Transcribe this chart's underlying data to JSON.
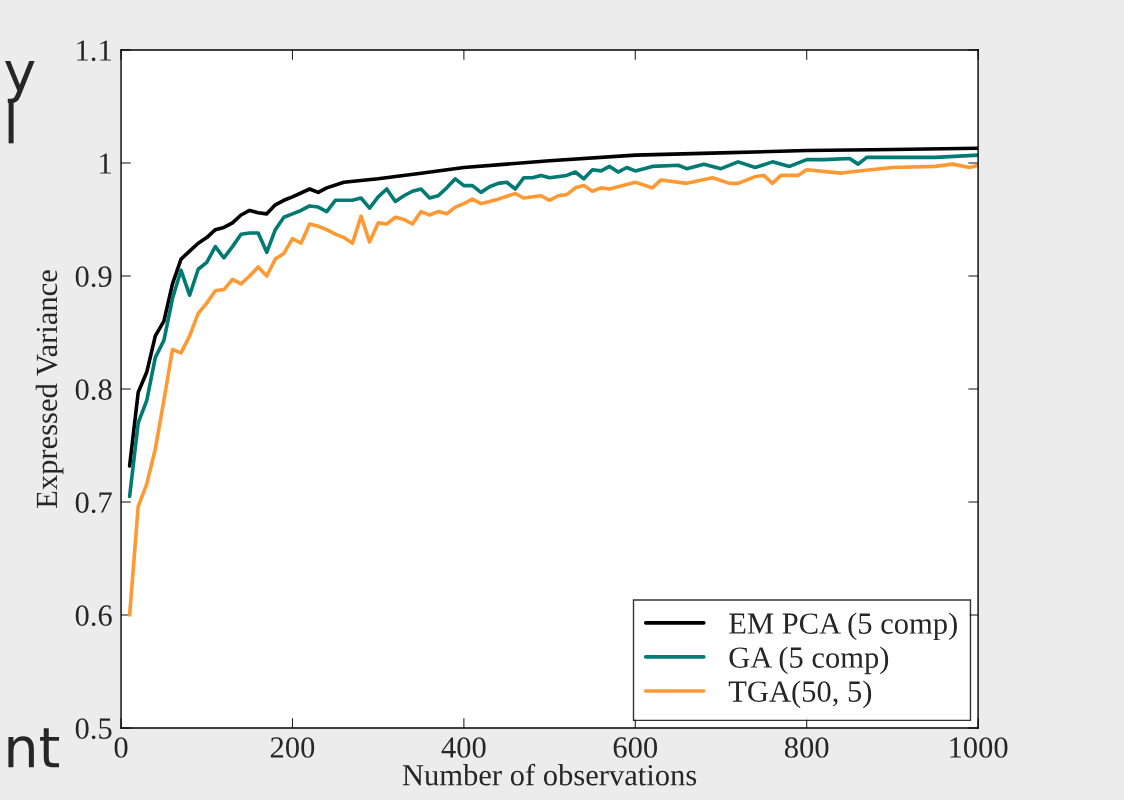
{
  "chart_data": {
    "type": "line",
    "xlabel": "Number of observations",
    "ylabel": "Expressed Variance",
    "xlim": [
      0,
      1000
    ],
    "xticks": [
      0,
      200,
      400,
      600,
      800,
      1000
    ],
    "ylim": [
      0.5,
      1.1
    ],
    "yticks": [
      0.5,
      0.6,
      0.7,
      0.8,
      0.9,
      1,
      1.1
    ],
    "grid": false,
    "legend": "bottom right",
    "marker": "none",
    "line_style": "solid",
    "annotations": [
      "y",
      "l",
      "nt"
    ],
    "series": [
      {
        "name": "EM PCA (5 comp)",
        "color": "#000000",
        "x": [
          10,
          20,
          30,
          40,
          50,
          60,
          70,
          80,
          90,
          100,
          110,
          120,
          130,
          140,
          150,
          160,
          170,
          180,
          190,
          200,
          220,
          230,
          240,
          260,
          300,
          350,
          400,
          450,
          500,
          600,
          700,
          800,
          900,
          1000
        ],
        "values": [
          0.732,
          0.797,
          0.815,
          0.847,
          0.86,
          0.893,
          0.915,
          0.922,
          0.929,
          0.934,
          0.941,
          0.943,
          0.947,
          0.954,
          0.958,
          0.956,
          0.955,
          0.963,
          0.967,
          0.97,
          0.977,
          0.974,
          0.978,
          0.983,
          0.986,
          0.991,
          0.996,
          0.999,
          1.002,
          1.007,
          1.009,
          1.011,
          1.012,
          1.013
        ]
      },
      {
        "name": "GA (5 comp)",
        "color": "#007a73",
        "x": [
          10,
          20,
          30,
          40,
          50,
          60,
          70,
          80,
          90,
          100,
          110,
          120,
          130,
          140,
          150,
          160,
          170,
          180,
          190,
          200,
          210,
          220,
          230,
          240,
          250,
          260,
          270,
          280,
          290,
          300,
          310,
          320,
          330,
          340,
          350,
          360,
          370,
          380,
          390,
          400,
          410,
          420,
          430,
          440,
          450,
          460,
          470,
          480,
          490,
          500,
          520,
          530,
          540,
          550,
          560,
          570,
          580,
          590,
          600,
          620,
          650,
          660,
          680,
          700,
          720,
          740,
          760,
          780,
          800,
          820,
          850,
          860,
          870,
          900,
          950,
          1000
        ],
        "values": [
          0.705,
          0.77,
          0.79,
          0.828,
          0.843,
          0.88,
          0.905,
          0.883,
          0.906,
          0.912,
          0.926,
          0.916,
          0.926,
          0.937,
          0.938,
          0.938,
          0.921,
          0.941,
          0.952,
          0.955,
          0.958,
          0.962,
          0.961,
          0.957,
          0.967,
          0.967,
          0.967,
          0.969,
          0.96,
          0.97,
          0.977,
          0.966,
          0.971,
          0.975,
          0.977,
          0.969,
          0.971,
          0.978,
          0.986,
          0.98,
          0.98,
          0.974,
          0.979,
          0.982,
          0.983,
          0.977,
          0.987,
          0.987,
          0.989,
          0.987,
          0.989,
          0.992,
          0.986,
          0.994,
          0.993,
          0.997,
          0.992,
          0.996,
          0.993,
          0.997,
          0.998,
          0.995,
          0.999,
          0.995,
          1.001,
          0.996,
          1.001,
          0.997,
          1.003,
          1.003,
          1.004,
          0.999,
          1.005,
          1.005,
          1.005,
          1.007
        ]
      },
      {
        "name": "TGA(50, 5)",
        "color": "#ff9933",
        "x": [
          10,
          20,
          30,
          40,
          50,
          60,
          70,
          80,
          90,
          100,
          110,
          120,
          130,
          140,
          150,
          160,
          170,
          180,
          190,
          200,
          210,
          220,
          230,
          240,
          250,
          260,
          270,
          280,
          290,
          300,
          310,
          320,
          330,
          340,
          350,
          360,
          370,
          380,
          390,
          400,
          410,
          420,
          440,
          460,
          470,
          490,
          500,
          510,
          520,
          530,
          540,
          550,
          560,
          570,
          600,
          620,
          630,
          660,
          690,
          710,
          720,
          740,
          750,
          760,
          770,
          790,
          800,
          840,
          850,
          900,
          950,
          970,
          990,
          1000
        ],
        "values": [
          0.6,
          0.696,
          0.716,
          0.747,
          0.79,
          0.835,
          0.832,
          0.847,
          0.867,
          0.876,
          0.887,
          0.888,
          0.897,
          0.893,
          0.9,
          0.908,
          0.9,
          0.915,
          0.92,
          0.933,
          0.929,
          0.946,
          0.944,
          0.941,
          0.937,
          0.934,
          0.929,
          0.953,
          0.93,
          0.947,
          0.946,
          0.952,
          0.95,
          0.946,
          0.957,
          0.954,
          0.957,
          0.955,
          0.961,
          0.964,
          0.968,
          0.964,
          0.968,
          0.973,
          0.969,
          0.971,
          0.967,
          0.971,
          0.972,
          0.978,
          0.98,
          0.975,
          0.978,
          0.977,
          0.983,
          0.978,
          0.985,
          0.982,
          0.987,
          0.982,
          0.982,
          0.988,
          0.989,
          0.982,
          0.989,
          0.989,
          0.994,
          0.991,
          0.992,
          0.996,
          0.997,
          0.999,
          0.996,
          0.998
        ]
      }
    ]
  }
}
